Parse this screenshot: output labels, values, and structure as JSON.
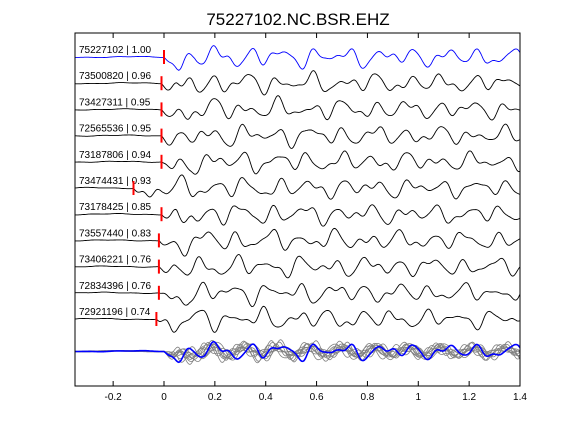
{
  "chart_data": {
    "type": "line",
    "title": "75227102.NC.BSR.EHZ",
    "xlabel": "",
    "ylabel": "",
    "xlim": [
      -0.35,
      1.4
    ],
    "x_ticks": [
      -0.2,
      0,
      0.2,
      0.4,
      0.6,
      0.8,
      1,
      1.2,
      1.4
    ],
    "x_tick_labels": [
      "-0.2",
      "0",
      "0.2",
      "0.4",
      "0.6",
      "0.8",
      "1",
      "1.2",
      "1.4"
    ],
    "grid": false,
    "series": [
      {
        "label": "75227102 | 1.00",
        "pick_time": 0.0,
        "color": "#0000ff"
      },
      {
        "label": "73500820 | 0.96",
        "pick_time": -0.01,
        "color": "#000000"
      },
      {
        "label": "73427311 | 0.95",
        "pick_time": -0.01,
        "color": "#000000"
      },
      {
        "label": "72565536 | 0.95",
        "pick_time": -0.01,
        "color": "#000000"
      },
      {
        "label": "73187806 | 0.94",
        "pick_time": -0.01,
        "color": "#000000"
      },
      {
        "label": "73474431 | 0.93",
        "pick_time": -0.12,
        "color": "#000000"
      },
      {
        "label": "73178425 | 0.85",
        "pick_time": -0.01,
        "color": "#000000"
      },
      {
        "label": "73557440 | 0.83",
        "pick_time": -0.02,
        "color": "#000000"
      },
      {
        "label": "73406221 | 0.76",
        "pick_time": -0.02,
        "color": "#000000"
      },
      {
        "label": "72834396 | 0.76",
        "pick_time": -0.02,
        "color": "#000000"
      },
      {
        "label": "72921196 | 0.74",
        "pick_time": -0.03,
        "color": "#000000"
      }
    ],
    "stack_colors": {
      "traces": "#808080",
      "reference": "#0000ff"
    },
    "pick_color": "#ff0000"
  }
}
